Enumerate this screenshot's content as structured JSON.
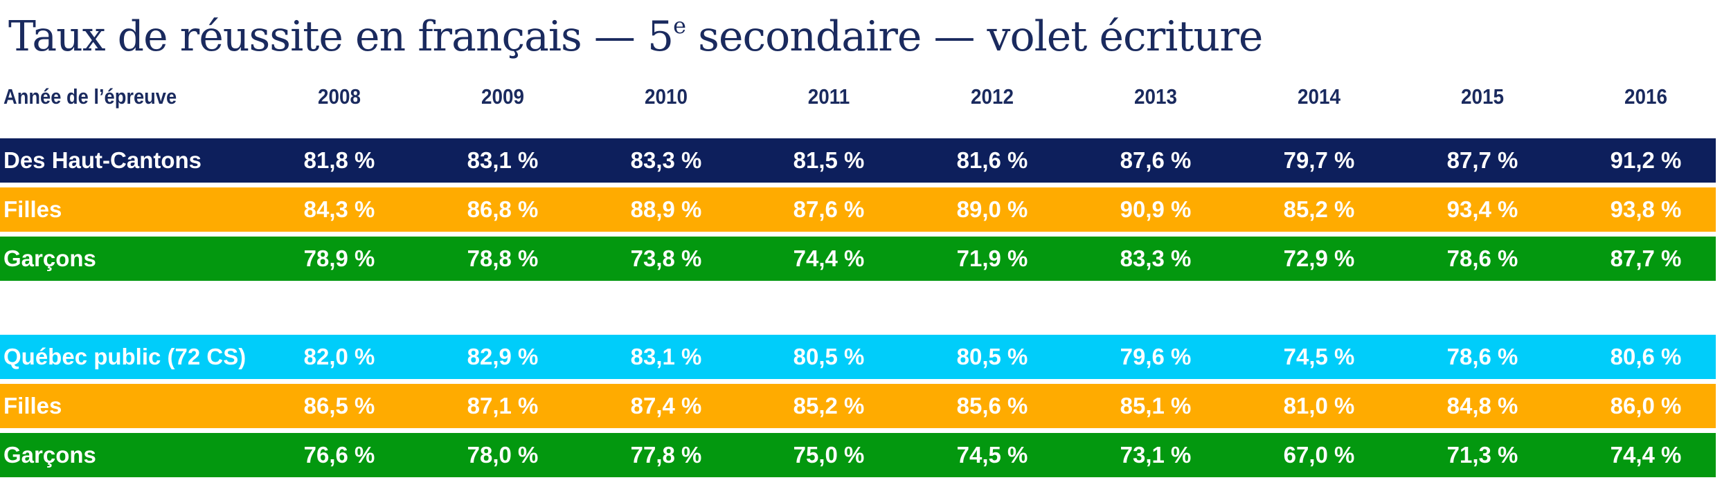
{
  "chart_data": {
    "type": "table",
    "title": "Taux de réussite en français — 5",
    "title_sup": "e",
    "title_tail": " secondaire —  volet écriture",
    "header_label": "Année de l’épreuve",
    "years": [
      "2008",
      "2009",
      "2010",
      "2011",
      "2012",
      "2013",
      "2014",
      "2015",
      "2016"
    ],
    "rows": [
      {
        "label": "Des Haut-Cantons",
        "color": "#0d1f5c",
        "values": [
          "81,8 %",
          "83,1 %",
          "83,3 %",
          "81,5 %",
          "81,6 %",
          "87,6 %",
          "79,7 %",
          "87,7 %",
          "91,2 %"
        ]
      },
      {
        "label": "Filles",
        "color": "#ffab00",
        "values": [
          "84,3 %",
          "86,8 %",
          "88,9 %",
          "87,6 %",
          "89,0 %",
          "90,9 %",
          "85,2 %",
          "93,4 %",
          "93,8 %"
        ]
      },
      {
        "label": "Garçons",
        "color": "#03980f",
        "values": [
          "78,9 %",
          "78,8 %",
          "73,8 %",
          "74,4 %",
          "71,9 %",
          "83,3 %",
          "72,9 %",
          "78,6 %",
          "87,7 %"
        ]
      },
      {
        "label": "Québec public (72 CS)",
        "color": "#00cdfa",
        "values": [
          "82,0 %",
          "82,9 %",
          "83,1 %",
          "80,5 %",
          "80,5 %",
          "79,6 %",
          "74,5 %",
          "78,6 %",
          "80,6 %"
        ]
      },
      {
        "label": "Filles",
        "color": "#ffab00",
        "values": [
          "86,5 %",
          "87,1 %",
          "87,4 %",
          "85,2 %",
          "85,6 %",
          "85,1 %",
          "81,0 %",
          "84,8 %",
          "86,0 %"
        ]
      },
      {
        "label": "Garçons",
        "color": "#03980f",
        "values": [
          "76,6 %",
          "78,0 %",
          "77,8 %",
          "75,0 %",
          "74,5 %",
          "73,1 %",
          "67,0 %",
          "71,3 %",
          "74,4 %"
        ]
      }
    ]
  }
}
